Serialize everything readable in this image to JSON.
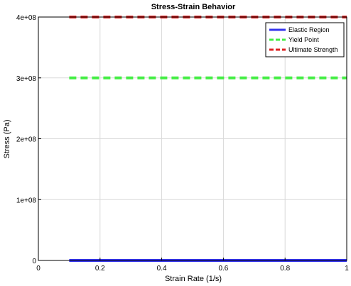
{
  "chart_data": {
    "type": "line",
    "title": "Stress-Strain Behavior",
    "xlabel": "Strain Rate (1/s)",
    "ylabel": "Stress (Pa)",
    "xlim": [
      0,
      1
    ],
    "ylim": [
      0,
      400000000
    ],
    "x_ticks": [
      0,
      0.2,
      0.4,
      0.6,
      0.8,
      1
    ],
    "x_tick_labels": [
      "0",
      "0.2",
      "0.4",
      "0.6",
      "0.8",
      "1"
    ],
    "y_ticks": [
      0,
      100000000,
      200000000,
      300000000,
      400000000
    ],
    "y_tick_labels": [
      "0",
      "1e+08",
      "2e+08",
      "3e+08",
      "4e+08"
    ],
    "grid": true,
    "legend_position": "top-right",
    "series": [
      {
        "name": "Elastic Region",
        "x": [
          0.1,
          1
        ],
        "y": [
          0,
          0
        ],
        "color": "#3333ee",
        "style": "solid"
      },
      {
        "name": "Yield Point",
        "x": [
          0.1,
          1
        ],
        "y": [
          300000000,
          300000000
        ],
        "color": "#44ee44",
        "style": "dashed"
      },
      {
        "name": "Ultimate Strength",
        "x": [
          0.1,
          1
        ],
        "y": [
          400000000,
          400000000
        ],
        "color": "#dd2222",
        "style": "dashed"
      }
    ]
  }
}
